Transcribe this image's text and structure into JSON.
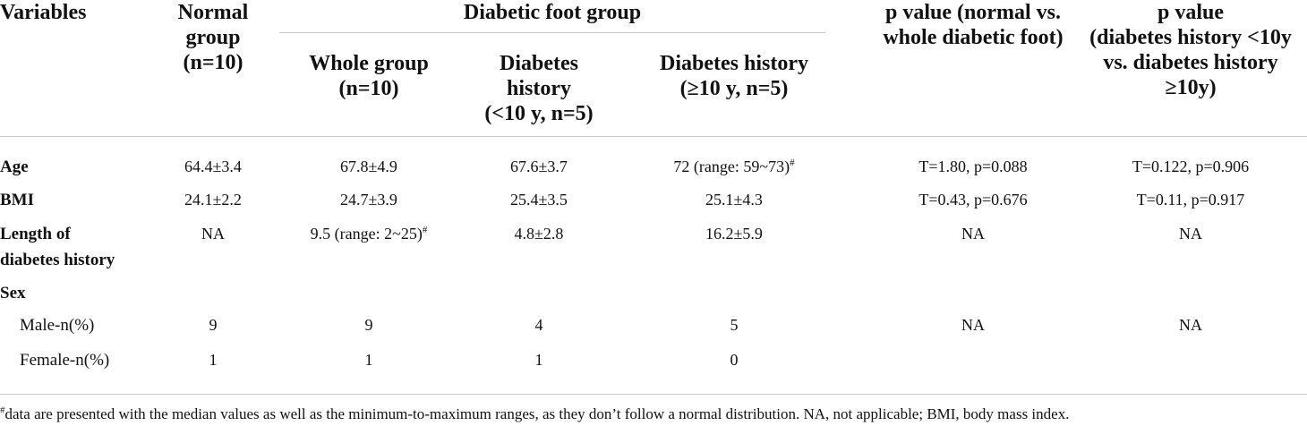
{
  "header": {
    "variables": "Variables",
    "normal_group": [
      "Normal",
      "group",
      "(n=10)"
    ],
    "diabetic_foot_group": "Diabetic foot group",
    "whole_group": [
      "Whole group",
      "(n=10)"
    ],
    "dh_lt10": [
      "Diabetes",
      "history",
      "(<10 y, n=5)"
    ],
    "dh_ge10": [
      "Diabetes history",
      "(≥10 y, n=5)"
    ],
    "p_normal_vs_whole": [
      "p value (normal vs.",
      "whole diabetic foot)"
    ],
    "p_dh": [
      "p value",
      "(diabetes history <10y",
      "vs. diabetes history",
      "≥10y)"
    ]
  },
  "rows": {
    "age": {
      "label": "Age",
      "normal": "64.4±3.4",
      "whole": "67.8±4.9",
      "lt10": "67.6±3.7",
      "ge10": "72 (range: 59~73)",
      "ge10_mark": "#",
      "p1": "T=1.80, p=0.088",
      "p2": "T=0.122, p=0.906"
    },
    "bmi": {
      "label": "BMI",
      "normal": "24.1±2.2",
      "whole": "24.7±3.9",
      "lt10": "25.4±3.5",
      "ge10": "25.1±4.3",
      "p1": "T=0.43, p=0.676",
      "p2": "T=0.11, p=0.917"
    },
    "length": {
      "label": [
        "Length of",
        "diabetes history"
      ],
      "normal": "NA",
      "whole": "9.5 (range: 2~25)",
      "whole_mark": "#",
      "lt10": "4.8±2.8",
      "ge10": "16.2±5.9",
      "p1": "NA",
      "p2": "NA"
    },
    "sex": {
      "label": "Sex"
    },
    "male": {
      "label": "Male-n(%)",
      "normal": "9",
      "whole": "9",
      "lt10": "4",
      "ge10": "5",
      "p1": "NA",
      "p2": "NA"
    },
    "female": {
      "label": "Female-n(%)",
      "normal": "1",
      "whole": "1",
      "lt10": "1",
      "ge10": "0"
    }
  },
  "footnote": {
    "mark": "#",
    "text": "data are presented with the median values as well as the minimum-to-maximum ranges, as they don’t follow a normal distribution. NA, not applicable; BMI, body mass index."
  }
}
